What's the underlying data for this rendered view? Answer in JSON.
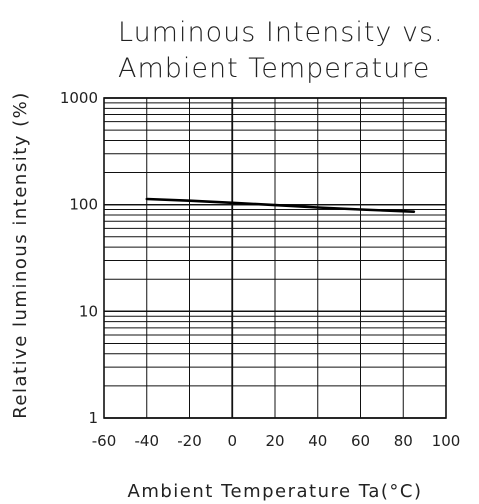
{
  "chart_data": {
    "type": "line",
    "title_lines": [
      "Luminous Intensity vs.",
      "Ambient Temperature"
    ],
    "xlabel": "Ambient Temperature Ta(°C)",
    "ylabel": "Relative luminous intensity (%)",
    "xlim": [
      -60,
      100
    ],
    "ylim": [
      1,
      1000
    ],
    "yscale": "log",
    "x_ticks": [
      -60,
      -40,
      -20,
      0,
      20,
      40,
      60,
      80,
      100
    ],
    "x_tick_labels": [
      "-60",
      "-40",
      "-20",
      "0",
      "20",
      "40",
      "60",
      "80",
      "100"
    ],
    "y_ticks": [
      1,
      10,
      100,
      1000
    ],
    "y_tick_labels": [
      "1",
      "10",
      "100",
      "1000"
    ],
    "grid": true,
    "series": [
      {
        "x": [
          -40,
          -20,
          0,
          20,
          40,
          60,
          85
        ],
        "y": [
          113,
          109,
          104,
          99,
          94,
          90,
          86
        ]
      }
    ]
  }
}
